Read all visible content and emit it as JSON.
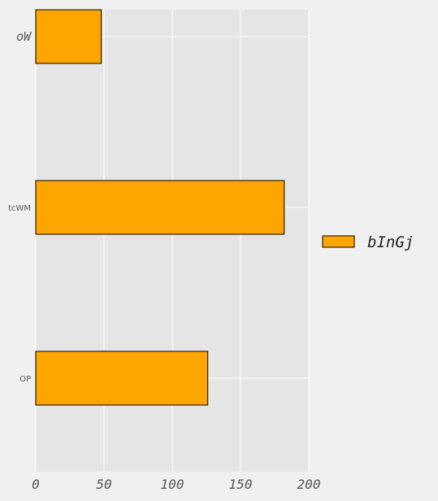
{
  "chart_data": {
    "type": "bar",
    "orientation": "horizontal",
    "categories": [
      "oW",
      "tcWM",
      "OP"
    ],
    "series": [
      {
        "name": "bInGj",
        "values": [
          48,
          182,
          126
        ],
        "color": "#ffa500"
      }
    ],
    "xlim": [
      0,
      200
    ],
    "xticks": [
      "0",
      "50",
      "100",
      "150",
      "200"
    ],
    "grid": true,
    "legend_position": "right",
    "background": "#e5e5e5",
    "figure_background": "#f0f0f0"
  }
}
